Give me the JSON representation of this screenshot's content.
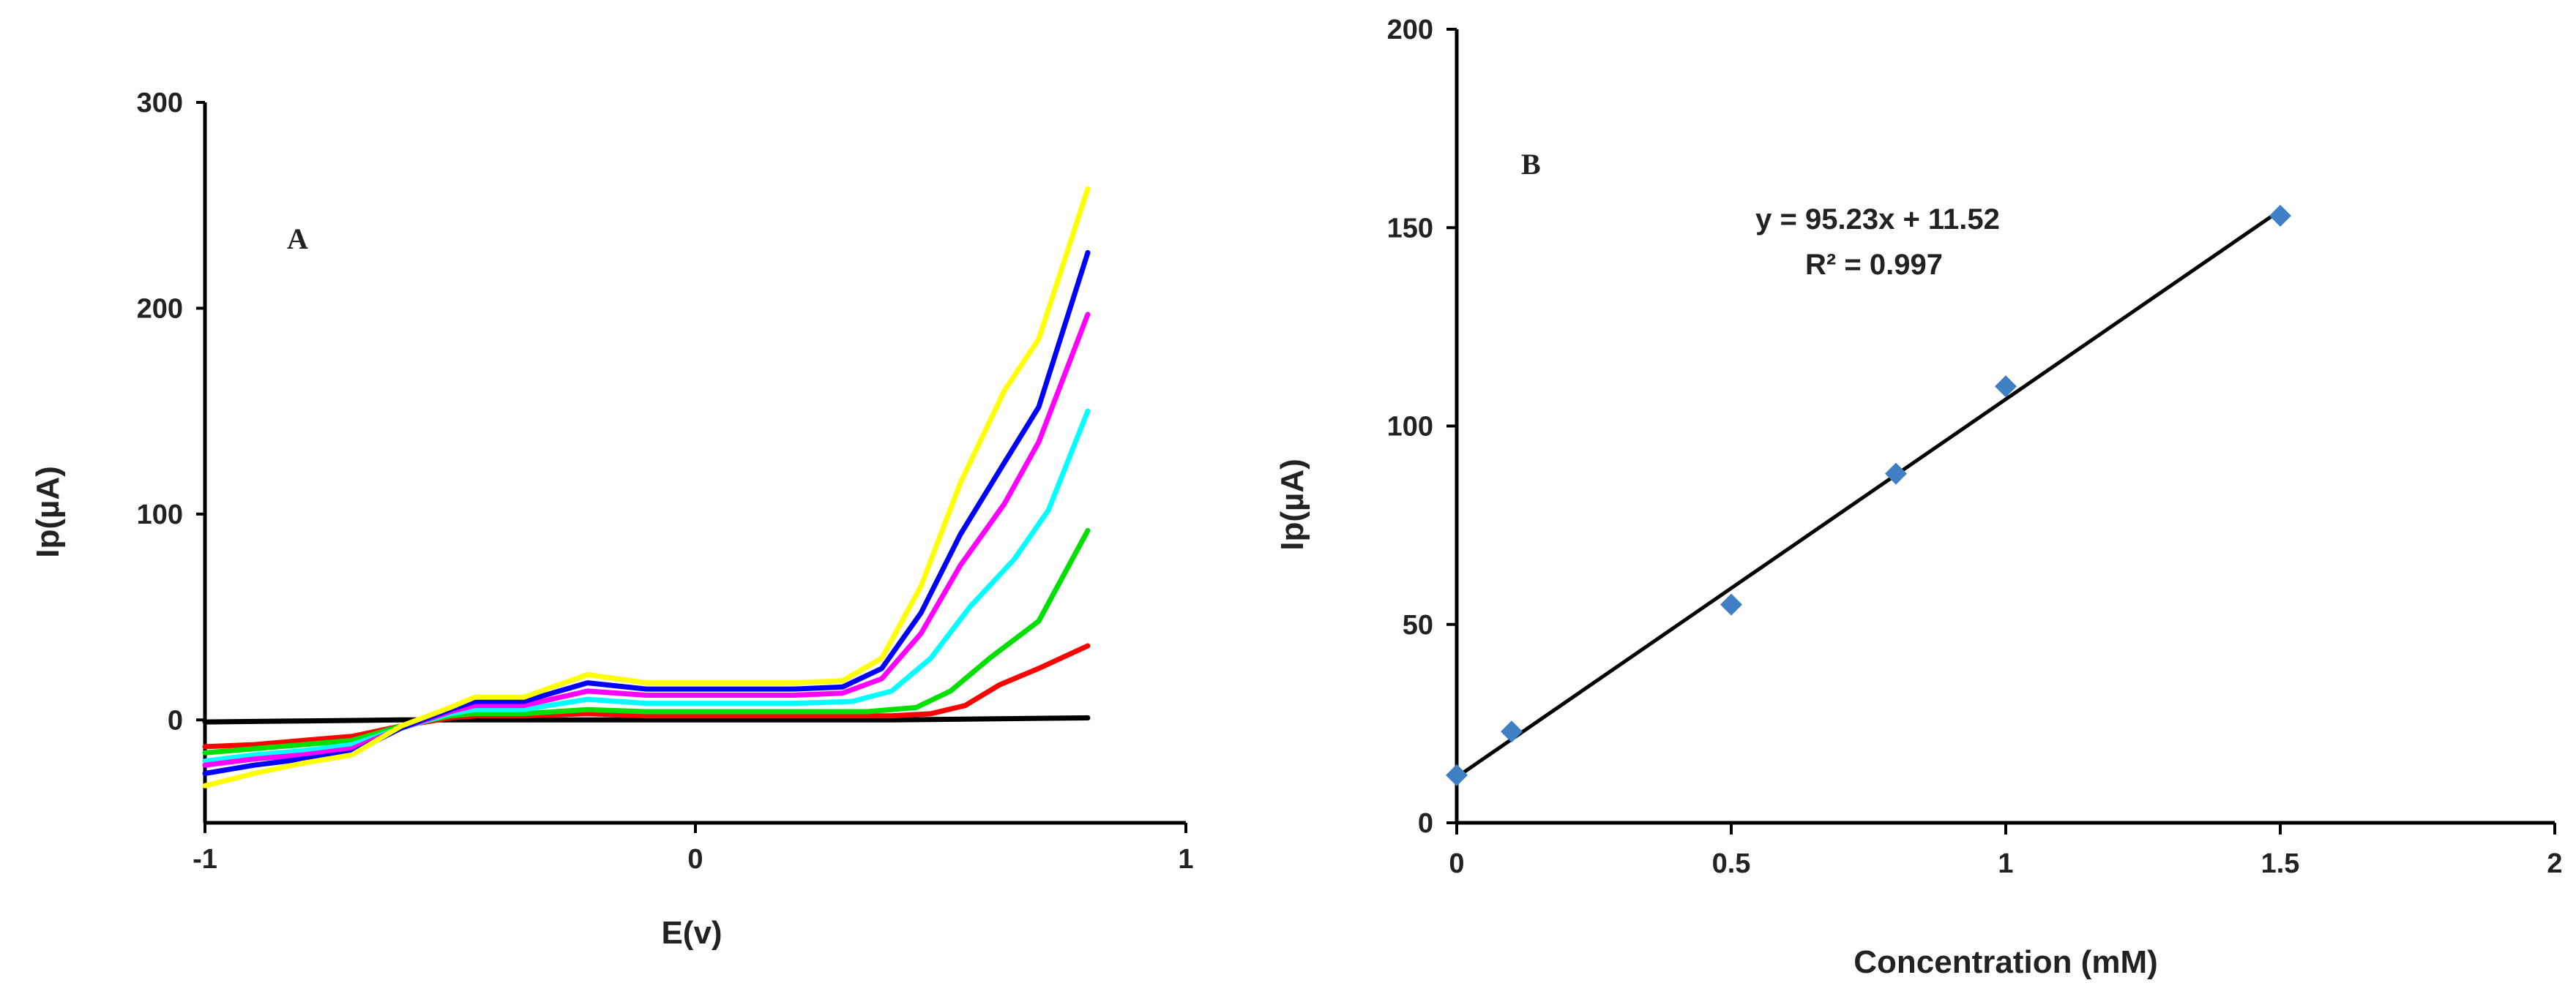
{
  "chart_data": [
    {
      "type": "line",
      "panel_label": "A",
      "xlabel": "E(v)",
      "ylabel": "Ip(µA)",
      "xlim": [
        -1,
        1
      ],
      "ylim": [
        -50,
        300
      ],
      "xticks": [
        -1,
        0,
        1
      ],
      "yticks": [
        0,
        100,
        200,
        300
      ],
      "grid": false,
      "series": [
        {
          "name": "black",
          "color": "#000000",
          "x": [
            -1,
            -0.8,
            -0.6,
            -0.4,
            -0.2,
            0,
            0.2,
            0.4,
            0.6,
            0.8
          ],
          "y": [
            -1,
            -0.5,
            0,
            0,
            0,
            0,
            0,
            0,
            0.5,
            1
          ]
        },
        {
          "name": "red",
          "color": "#ff0000",
          "x": [
            -1,
            -0.9,
            -0.8,
            -0.7,
            -0.6,
            -0.5,
            -0.45,
            -0.35,
            -0.22,
            -0.1,
            0,
            0.2,
            0.4,
            0.48,
            0.55,
            0.62,
            0.7,
            0.8
          ],
          "y": [
            -13,
            -12,
            -10,
            -8,
            -3,
            1,
            2,
            2,
            3,
            2,
            2,
            2,
            2,
            3,
            7,
            17,
            25,
            36
          ]
        },
        {
          "name": "green",
          "color": "#00e000",
          "x": [
            -1,
            -0.9,
            -0.8,
            -0.7,
            -0.6,
            -0.5,
            -0.45,
            -0.35,
            -0.22,
            -0.1,
            0,
            0.2,
            0.35,
            0.45,
            0.52,
            0.6,
            0.7,
            0.8
          ],
          "y": [
            -16,
            -14,
            -12,
            -10,
            -3,
            2,
            3,
            3,
            5,
            4,
            4,
            4,
            4,
            6,
            14,
            30,
            48,
            92
          ]
        },
        {
          "name": "cyan",
          "color": "#00ffff",
          "x": [
            -1,
            -0.9,
            -0.8,
            -0.7,
            -0.6,
            -0.5,
            -0.45,
            -0.35,
            -0.22,
            -0.1,
            0,
            0.2,
            0.32,
            0.4,
            0.48,
            0.56,
            0.65,
            0.72,
            0.8
          ],
          "y": [
            -20,
            -17,
            -15,
            -12,
            -4,
            3,
            5,
            5,
            10,
            8,
            8,
            8,
            9,
            14,
            30,
            55,
            78,
            102,
            150
          ]
        },
        {
          "name": "magenta",
          "color": "#ff00ff",
          "x": [
            -1,
            -0.9,
            -0.8,
            -0.7,
            -0.6,
            -0.5,
            -0.45,
            -0.35,
            -0.22,
            -0.1,
            0,
            0.2,
            0.3,
            0.38,
            0.46,
            0.54,
            0.63,
            0.7,
            0.8
          ],
          "y": [
            -22,
            -19,
            -17,
            -14,
            -4,
            4,
            7,
            7,
            14,
            12,
            12,
            12,
            13,
            20,
            42,
            75,
            105,
            135,
            197
          ]
        },
        {
          "name": "blue",
          "color": "#0000ff",
          "x": [
            -1,
            -0.9,
            -0.8,
            -0.7,
            -0.6,
            -0.5,
            -0.45,
            -0.35,
            -0.22,
            -0.1,
            0,
            0.2,
            0.3,
            0.38,
            0.46,
            0.54,
            0.63,
            0.7,
            0.8
          ],
          "y": [
            -26,
            -22,
            -19,
            -16,
            -4,
            5,
            9,
            9,
            18,
            15,
            15,
            15,
            16,
            25,
            52,
            90,
            125,
            152,
            227
          ]
        },
        {
          "name": "yellow",
          "color": "#ffff00",
          "x": [
            -1,
            -0.9,
            -0.8,
            -0.7,
            -0.6,
            -0.5,
            -0.45,
            -0.35,
            -0.22,
            -0.1,
            0,
            0.2,
            0.3,
            0.38,
            0.46,
            0.54,
            0.63,
            0.7,
            0.8
          ],
          "y": [
            -32,
            -26,
            -21,
            -17,
            -3,
            6,
            11,
            11,
            22,
            18,
            18,
            18,
            19,
            30,
            65,
            115,
            160,
            185,
            258
          ]
        }
      ]
    },
    {
      "type": "scatter",
      "panel_label": "B",
      "xlabel": "Concentration (mM)",
      "ylabel": "Ip(µA)",
      "xlim": [
        0,
        2
      ],
      "ylim": [
        0,
        200
      ],
      "xticks": [
        0,
        0.5,
        1,
        1.5,
        2
      ],
      "yticks": [
        0,
        50,
        100,
        150,
        200
      ],
      "grid": false,
      "marker_color": "#3f7fc4",
      "points": {
        "x": [
          0,
          0.1,
          0.5,
          0.8,
          1.0,
          1.5
        ],
        "y": [
          12,
          23,
          55,
          88,
          110,
          153
        ]
      },
      "fit": {
        "slope": 95.23,
        "intercept": 11.52,
        "x_range": [
          0,
          1.5
        ]
      },
      "equation_text": "y = 95.23x + 11.52",
      "r2_text": "R² = 0.997"
    }
  ]
}
